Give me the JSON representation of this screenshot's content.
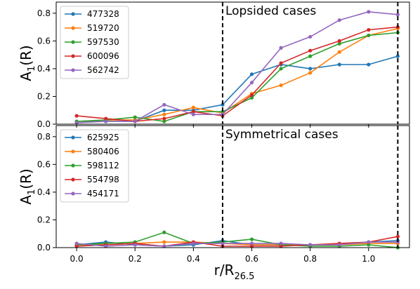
{
  "chart_data": [
    {
      "type": "line",
      "annotation": "Lopsided cases",
      "ylabel": "A",
      "ylabel_sub": "1",
      "ylabel_suffix": "(R)",
      "xlim": [
        -0.07,
        1.14
      ],
      "ylim": [
        0,
        0.88
      ],
      "yticks": [
        "0.0",
        "0.2",
        "0.4",
        "0.6",
        "0.8"
      ],
      "vlines": [
        0.5,
        1.1
      ],
      "grid": false,
      "legend_position": "top-left",
      "x": [
        0.0,
        0.1,
        0.2,
        0.3,
        0.4,
        0.5,
        0.6,
        0.7,
        0.8,
        0.9,
        1.0,
        1.1
      ],
      "series": [
        {
          "name": "477328",
          "color": "#1f77b4",
          "values": [
            0.02,
            0.02,
            0.02,
            0.1,
            0.1,
            0.14,
            0.36,
            0.43,
            0.4,
            0.43,
            0.43,
            0.49
          ]
        },
        {
          "name": "519720",
          "color": "#ff7f0e",
          "values": [
            0.02,
            0.03,
            0.03,
            0.07,
            0.12,
            0.08,
            0.22,
            0.28,
            0.37,
            0.52,
            0.64,
            0.69
          ]
        },
        {
          "name": "597530",
          "color": "#2ca02c",
          "values": [
            0.02,
            0.03,
            0.05,
            0.02,
            0.09,
            0.09,
            0.19,
            0.4,
            0.49,
            0.58,
            0.64,
            0.66
          ]
        },
        {
          "name": "600096",
          "color": "#d62728",
          "values": [
            0.06,
            0.04,
            0.02,
            0.04,
            0.09,
            0.06,
            0.21,
            0.44,
            0.53,
            0.6,
            0.68,
            0.7
          ]
        },
        {
          "name": "562742",
          "color": "#9467bd",
          "values": [
            0.01,
            0.02,
            0.02,
            0.14,
            0.07,
            0.07,
            0.3,
            0.55,
            0.63,
            0.75,
            0.81,
            0.79
          ]
        }
      ]
    },
    {
      "type": "line",
      "annotation": "Symmetrical cases",
      "ylabel": "A",
      "ylabel_sub": "1",
      "ylabel_suffix": "(R)",
      "xlabel": "r/R",
      "xlabel_sub": "26.5",
      "xlim": [
        -0.07,
        1.14
      ],
      "ylim": [
        0,
        0.88
      ],
      "xticks": [
        "0.0",
        "0.2",
        "0.4",
        "0.6",
        "0.8",
        "1.0"
      ],
      "yticks": [
        "0.0",
        "0.2",
        "0.4",
        "0.6",
        "0.8"
      ],
      "vlines": [
        0.5,
        1.1
      ],
      "grid": false,
      "legend_position": "top-left",
      "x": [
        0.0,
        0.1,
        0.2,
        0.3,
        0.4,
        0.5,
        0.6,
        0.7,
        0.8,
        0.9,
        1.0,
        1.1
      ],
      "series": [
        {
          "name": "625925",
          "color": "#1f77b4",
          "values": [
            0.02,
            0.04,
            0.02,
            0.01,
            0.02,
            0.05,
            0.02,
            0.02,
            0.02,
            0.02,
            0.04,
            0.05
          ]
        },
        {
          "name": "580406",
          "color": "#ff7f0e",
          "values": [
            0.02,
            0.02,
            0.03,
            0.04,
            0.04,
            0.03,
            0.02,
            0.02,
            0.02,
            0.02,
            0.03,
            0.03
          ]
        },
        {
          "name": "598112",
          "color": "#2ca02c",
          "values": [
            0.02,
            0.03,
            0.04,
            0.11,
            0.03,
            0.04,
            0.06,
            0.02,
            0.01,
            0.01,
            0.02,
            0.0
          ]
        },
        {
          "name": "554798",
          "color": "#d62728",
          "values": [
            0.01,
            0.02,
            0.03,
            0.01,
            0.04,
            0.01,
            0.01,
            0.01,
            0.02,
            0.03,
            0.04,
            0.08
          ]
        },
        {
          "name": "454171",
          "color": "#9467bd",
          "values": [
            0.03,
            0.01,
            0.02,
            0.01,
            0.03,
            0.03,
            0.03,
            0.03,
            0.02,
            0.02,
            0.04,
            0.04
          ]
        }
      ]
    }
  ]
}
